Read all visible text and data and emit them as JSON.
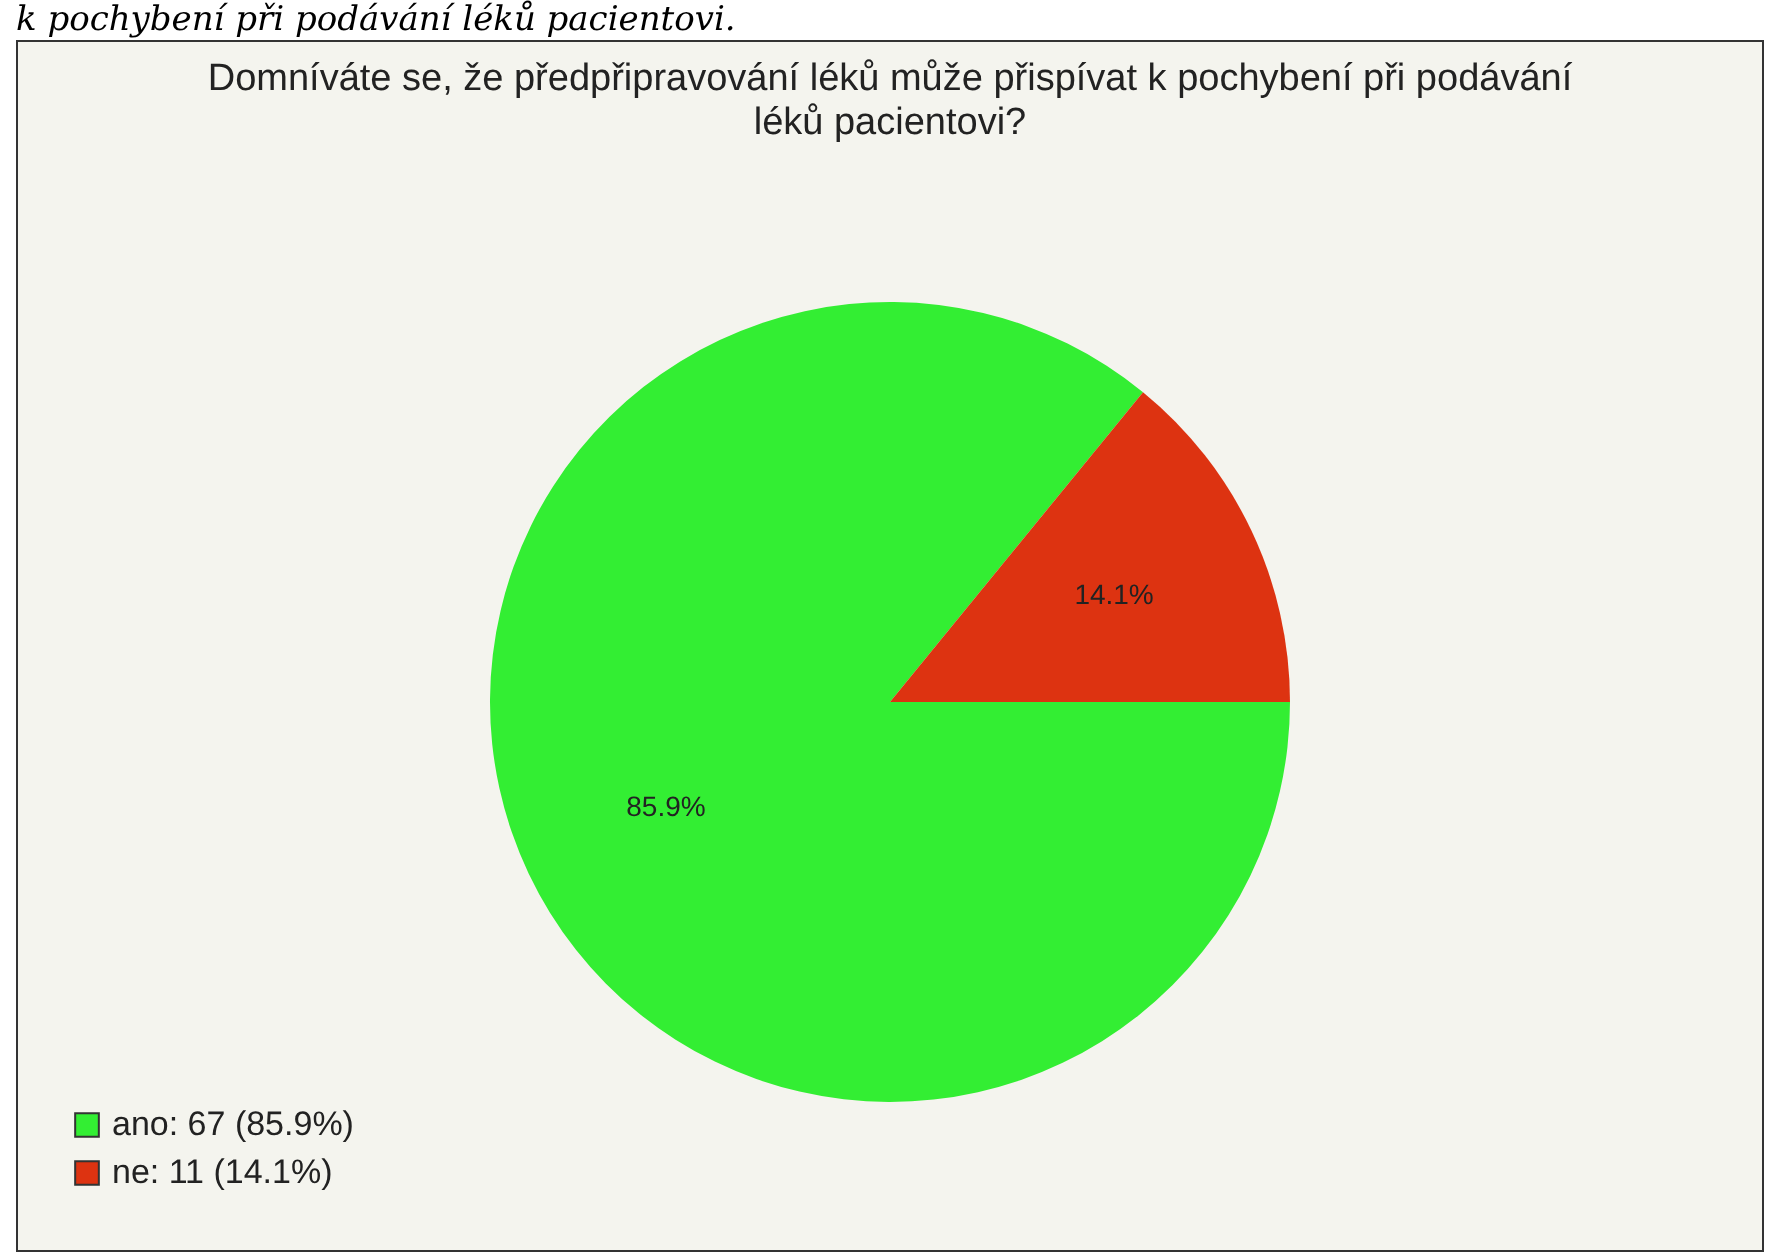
{
  "chart_data": {
    "type": "pie",
    "title": "Domníváte se, že předpřipravování léků může přispívat k pochybení při podávání léků pacientovi?",
    "annotations": [
      "k pochybení při podávání léků pacientovi."
    ],
    "categories": [
      "ano: 67 (85.9%)",
      "ne: 11 (14.1%)"
    ],
    "values": [
      85.9,
      14.1
    ],
    "colors": [
      "#33ee33",
      "#dd3311"
    ],
    "value_labels": [
      "85.9%",
      "14.1%"
    ],
    "legend": "bottom left"
  }
}
